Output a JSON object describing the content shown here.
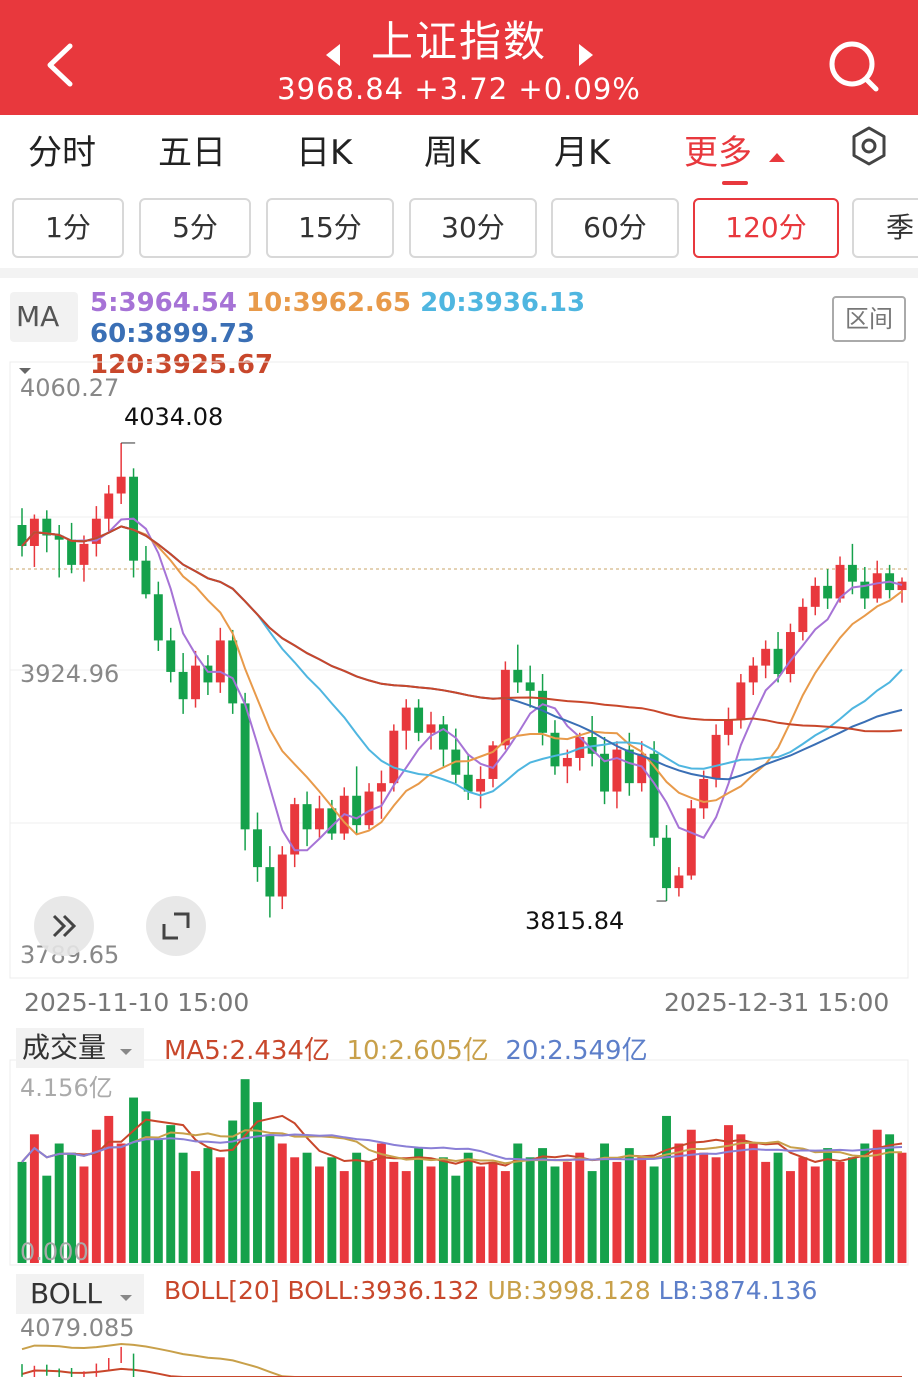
{
  "header": {
    "title": "上证指数",
    "price": "3968.84",
    "change": "+3.72",
    "change_pct": "+0.09%",
    "quote_line": "3968.84 +3.72 +0.09%",
    "bg_color": "#e8383d"
  },
  "tabs": [
    {
      "label": "分时"
    },
    {
      "label": "五日"
    },
    {
      "label": "日K"
    },
    {
      "label": "周K"
    },
    {
      "label": "月K"
    },
    {
      "label": "更多"
    }
  ],
  "active_tab": "更多",
  "periods": [
    {
      "label": "1分"
    },
    {
      "label": "5分"
    },
    {
      "label": "15分"
    },
    {
      "label": "30分"
    },
    {
      "label": "60分"
    },
    {
      "label": "120分"
    },
    {
      "label": "季"
    }
  ],
  "active_period": "120分",
  "ma": {
    "selector": "MA",
    "ma5": "5:3964.54",
    "ma10": "10:3962.65",
    "ma20": "20:3936.13",
    "ma60": "60:3899.73",
    "ma120": "120:3925.67",
    "range_button": "区间",
    "colors": {
      "ma5": "#a673d6",
      "ma10": "#e89a4a",
      "ma20": "#4fb6e0",
      "ma60": "#3a6fb5",
      "ma120": "#c8472b"
    }
  },
  "main_chart": {
    "y_top": "4060.27",
    "y_mid": "3924.96",
    "y_bottom": "3789.65",
    "high_label": "4034.08",
    "low_label": "3815.84",
    "date_start": "2025-11-10  15:00",
    "date_end": "2025-12-31  15:00"
  },
  "volume": {
    "selector": "成交量",
    "ma5_label": "MA5:",
    "ma5": "2.434亿",
    "ma10": "10:2.605亿",
    "ma20": "20:2.549亿",
    "y_top": "4.156亿",
    "y_bottom": "0.000"
  },
  "boll": {
    "selector": "BOLL",
    "params": "BOLL[20]",
    "mid": "BOLL:3936.132",
    "ub": "UB:3998.128",
    "lb": "LB:3874.136",
    "y_top": "4079.085"
  },
  "colors": {
    "up": "#e8383d",
    "down": "#15a14b"
  },
  "chart_data": {
    "type": "candlestick",
    "y_range": [
      3789.65,
      4060.27
    ],
    "candles": [
      [
        3995,
        4003,
        3980,
        3985
      ],
      [
        3985,
        4000,
        3975,
        3998
      ],
      [
        3998,
        4002,
        3982,
        3990
      ],
      [
        3990,
        3995,
        3970,
        3988
      ],
      [
        3988,
        3996,
        3972,
        3976
      ],
      [
        3976,
        3990,
        3968,
        3986
      ],
      [
        3986,
        4004,
        3980,
        3998
      ],
      [
        3998,
        4014,
        3992,
        4010
      ],
      [
        4010,
        4034.08,
        4005,
        4018
      ],
      [
        4018,
        4022,
        3970,
        3978
      ],
      [
        3978,
        3985,
        3960,
        3962
      ],
      [
        3962,
        3968,
        3935,
        3940
      ],
      [
        3940,
        3946,
        3920,
        3925
      ],
      [
        3925,
        3934,
        3905,
        3912
      ],
      [
        3912,
        3935,
        3908,
        3928
      ],
      [
        3928,
        3933,
        3914,
        3920
      ],
      [
        3920,
        3946,
        3915,
        3940
      ],
      [
        3940,
        3945,
        3905,
        3910
      ],
      [
        3910,
        3915,
        3840,
        3850
      ],
      [
        3850,
        3858,
        3825,
        3832
      ],
      [
        3832,
        3842,
        3808,
        3818
      ],
      [
        3818,
        3842,
        3812,
        3838
      ],
      [
        3838,
        3865,
        3832,
        3862
      ],
      [
        3862,
        3868,
        3842,
        3850
      ],
      [
        3850,
        3866,
        3846,
        3860
      ],
      [
        3860,
        3864,
        3845,
        3848
      ],
      [
        3848,
        3870,
        3845,
        3866
      ],
      [
        3866,
        3880,
        3848,
        3852
      ],
      [
        3852,
        3872,
        3850,
        3868
      ],
      [
        3868,
        3878,
        3855,
        3872
      ],
      [
        3872,
        3900,
        3868,
        3897
      ],
      [
        3897,
        3912,
        3888,
        3908
      ],
      [
        3908,
        3912,
        3892,
        3896
      ],
      [
        3896,
        3906,
        3888,
        3900
      ],
      [
        3900,
        3904,
        3880,
        3888
      ],
      [
        3888,
        3898,
        3872,
        3876
      ],
      [
        3876,
        3886,
        3864,
        3868
      ],
      [
        3868,
        3880,
        3860,
        3874
      ],
      [
        3874,
        3892,
        3870,
        3890
      ],
      [
        3890,
        3930,
        3888,
        3926
      ],
      [
        3926,
        3938,
        3915,
        3920
      ],
      [
        3920,
        3928,
        3908,
        3916
      ],
      [
        3916,
        3924,
        3890,
        3896
      ],
      [
        3896,
        3902,
        3876,
        3880
      ],
      [
        3880,
        3888,
        3872,
        3884
      ],
      [
        3884,
        3896,
        3878,
        3894
      ],
      [
        3894,
        3904,
        3880,
        3886
      ],
      [
        3886,
        3894,
        3862,
        3868
      ],
      [
        3868,
        3892,
        3860,
        3888
      ],
      [
        3888,
        3896,
        3866,
        3872
      ],
      [
        3872,
        3892,
        3868,
        3886
      ],
      [
        3886,
        3892,
        3842,
        3846
      ],
      [
        3846,
        3852,
        3815.84,
        3822
      ],
      [
        3822,
        3832,
        3818,
        3828
      ],
      [
        3828,
        3864,
        3826,
        3860
      ],
      [
        3860,
        3878,
        3855,
        3874
      ],
      [
        3874,
        3900,
        3870,
        3895
      ],
      [
        3895,
        3908,
        3890,
        3902
      ],
      [
        3902,
        3924,
        3898,
        3920
      ],
      [
        3920,
        3932,
        3914,
        3928
      ],
      [
        3928,
        3940,
        3922,
        3936
      ],
      [
        3936,
        3944,
        3920,
        3924
      ],
      [
        3924,
        3948,
        3920,
        3944
      ],
      [
        3944,
        3960,
        3940,
        3956
      ],
      [
        3956,
        3970,
        3952,
        3966
      ],
      [
        3966,
        3974,
        3955,
        3960
      ],
      [
        3960,
        3980,
        3958,
        3976
      ],
      [
        3976,
        3986,
        3962,
        3968
      ],
      [
        3968,
        3975,
        3955,
        3960
      ],
      [
        3960,
        3978,
        3958,
        3972
      ],
      [
        3972,
        3976,
        3960,
        3964
      ],
      [
        3964,
        3970,
        3958,
        3968
      ]
    ],
    "volumes": [
      2.2,
      2.8,
      1.9,
      2.6,
      2.4,
      2.1,
      2.9,
      3.2,
      2.6,
      3.6,
      3.3,
      2.7,
      3.0,
      2.4,
      2.0,
      2.5,
      2.3,
      3.1,
      4.0,
      3.5,
      2.8,
      2.6,
      2.3,
      2.4,
      2.1,
      2.3,
      2.0,
      2.4,
      2.2,
      2.6,
      2.2,
      2.0,
      2.5,
      2.1,
      2.3,
      1.9,
      2.4,
      2.1,
      2.2,
      2.0,
      2.6,
      2.3,
      2.5,
      2.1,
      2.2,
      2.4,
      2.0,
      2.6,
      2.2,
      2.5,
      2.3,
      2.1,
      3.2,
      2.6,
      2.9,
      2.4,
      2.3,
      3.0,
      2.8,
      2.6,
      2.2,
      2.4,
      2.0,
      2.3,
      2.1,
      2.5,
      2.2,
      2.3,
      2.6,
      2.9,
      2.8,
      2.4
    ]
  }
}
